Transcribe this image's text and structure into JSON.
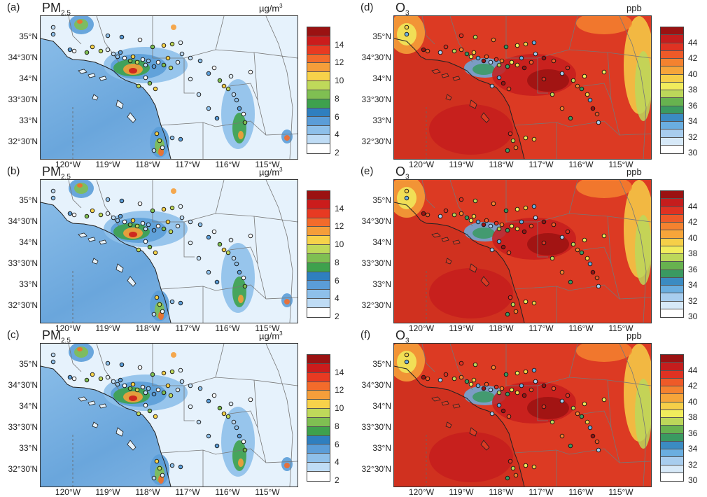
{
  "panels": [
    {
      "id": "a",
      "letter": "(a)",
      "species": "PM",
      "sub": "2.5",
      "unit": "µg/m",
      "unit_sup": "3",
      "type": "pm"
    },
    {
      "id": "b",
      "letter": "(b)",
      "species": "PM",
      "sub": "2.5",
      "unit": "µg/m",
      "unit_sup": "3",
      "type": "pm"
    },
    {
      "id": "c",
      "letter": "(c)",
      "species": "PM",
      "sub": "2.5",
      "unit": "µg/m",
      "unit_sup": "3",
      "type": "pm"
    },
    {
      "id": "d",
      "letter": "(d)",
      "species": "O",
      "sub": "3",
      "unit": "ppb",
      "unit_sup": "",
      "type": "o3"
    },
    {
      "id": "e",
      "letter": "(e)",
      "species": "O",
      "sub": "3",
      "unit": "ppb",
      "unit_sup": "",
      "type": "o3"
    },
    {
      "id": "f",
      "letter": "(f)",
      "species": "O",
      "sub": "3",
      "unit": "ppb",
      "unit_sup": "",
      "type": "o3"
    }
  ],
  "lat_ticks": [
    "35°N",
    "34°30'N",
    "34°N",
    "33°30'N",
    "33°N",
    "32°30'N"
  ],
  "lon_ticks": [
    "120°W",
    "119°W",
    "118°W",
    "117°W",
    "116°W",
    "115°W"
  ],
  "pm_colorbar": {
    "tick_labels": [
      "14",
      "12",
      "10",
      "8",
      "6",
      "4",
      "2"
    ],
    "colors": [
      "#9b1212",
      "#cb1c1c",
      "#e83a22",
      "#f36b2b",
      "#f59e3a",
      "#f7d24a",
      "#bfd95a",
      "#7fbf52",
      "#3ea14d",
      "#2f7fbf",
      "#5b9dd8",
      "#8ec0ea",
      "#bfdcf5",
      "#ffffff"
    ]
  },
  "o3_colorbar": {
    "tick_labels": [
      "44",
      "42",
      "40",
      "38",
      "36",
      "34",
      "32",
      "30"
    ],
    "colors": [
      "#9b1212",
      "#c51d1d",
      "#df3222",
      "#ee5a28",
      "#f4822f",
      "#f6a53a",
      "#f6cf48",
      "#f1ec5c",
      "#bcd75a",
      "#67b24f",
      "#3a9a61",
      "#3b8bc2",
      "#6aaee0",
      "#a8cdee",
      "#d7e9f8",
      "#ffffff"
    ]
  },
  "map_colors": {
    "pm_background": "#e6f2fc",
    "o3_background": "#dc3a23",
    "coast": "#222222",
    "borders": "#777777"
  }
}
